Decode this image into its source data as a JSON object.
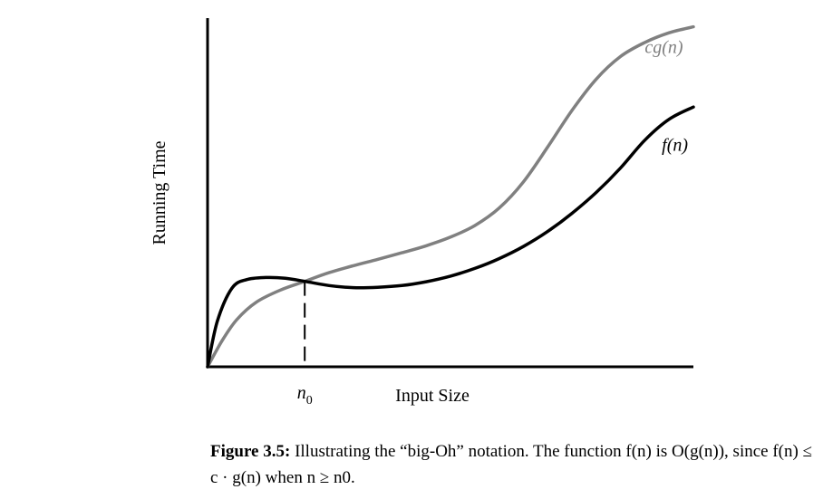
{
  "chart_data": {
    "type": "line",
    "title": "",
    "xlabel": "Input Size",
    "ylabel": "Running Time",
    "xlim": [
      0,
      10
    ],
    "ylim": [
      0,
      10
    ],
    "grid": false,
    "x_tick_labels": [
      {
        "x": 2.0,
        "label": "n",
        "sub": "0"
      }
    ],
    "annotations": [
      {
        "type": "vertical-dashed-line",
        "x": 2.0,
        "y_from": 0,
        "y_to": 2.45,
        "label": "n0"
      }
    ],
    "series": [
      {
        "name": "f(n)",
        "color": "#000000",
        "x": [
          0,
          0.2,
          0.5,
          0.8,
          1.2,
          1.6,
          2.0,
          2.5,
          3.0,
          3.5,
          4.0,
          4.5,
          5.0,
          5.5,
          6.0,
          6.5,
          7.0,
          7.5,
          8.0,
          8.5,
          9.0,
          9.5,
          10.0
        ],
        "values": [
          0,
          1.3,
          2.25,
          2.5,
          2.56,
          2.54,
          2.45,
          2.33,
          2.27,
          2.28,
          2.33,
          2.44,
          2.6,
          2.82,
          3.1,
          3.45,
          3.88,
          4.4,
          5.0,
          5.7,
          6.5,
          7.1,
          7.45
        ]
      },
      {
        "name": "cg(n)",
        "color": "#808080",
        "x": [
          0,
          0.3,
          0.6,
          1.0,
          1.5,
          2.0,
          2.5,
          3.0,
          3.5,
          4.0,
          4.5,
          5.0,
          5.5,
          6.0,
          6.5,
          7.0,
          7.5,
          8.0,
          8.5,
          9.0,
          9.5,
          10.0
        ],
        "values": [
          0,
          0.75,
          1.35,
          1.85,
          2.2,
          2.45,
          2.7,
          2.9,
          3.08,
          3.27,
          3.47,
          3.72,
          4.05,
          4.55,
          5.3,
          6.3,
          7.35,
          8.25,
          8.9,
          9.3,
          9.58,
          9.75
        ]
      }
    ],
    "curve_labels": {
      "f": {
        "text": "f(n)",
        "x": 9.35,
        "y": 6.2
      },
      "cg": {
        "text": "cg(n)",
        "x": 9.0,
        "y": 9.0
      }
    }
  },
  "caption": {
    "fig_label": "Figure 3.5:",
    "text": "Illustrating the “big-Oh” notation. The function f(n) is O(g(n)), since f(n) ≤ c · g(n) when n ≥ n0."
  }
}
